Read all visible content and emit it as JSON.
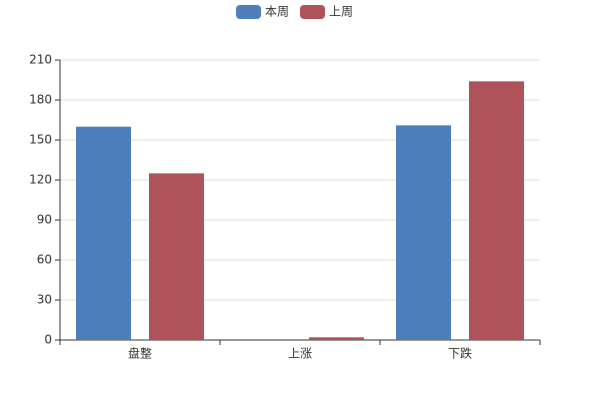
{
  "chart_data": {
    "type": "bar",
    "categories": [
      "盘整",
      "上涨",
      "下跌"
    ],
    "series": [
      {
        "name": "本周",
        "color": "#4e7fbb",
        "values": [
          160,
          0,
          161
        ]
      },
      {
        "name": "上周",
        "color": "#b0525a",
        "values": [
          125,
          2,
          194
        ]
      }
    ],
    "ylim": [
      0,
      210
    ],
    "yticks": [
      0,
      30,
      60,
      90,
      120,
      150,
      180,
      210
    ],
    "grid": true,
    "legend": "top"
  }
}
